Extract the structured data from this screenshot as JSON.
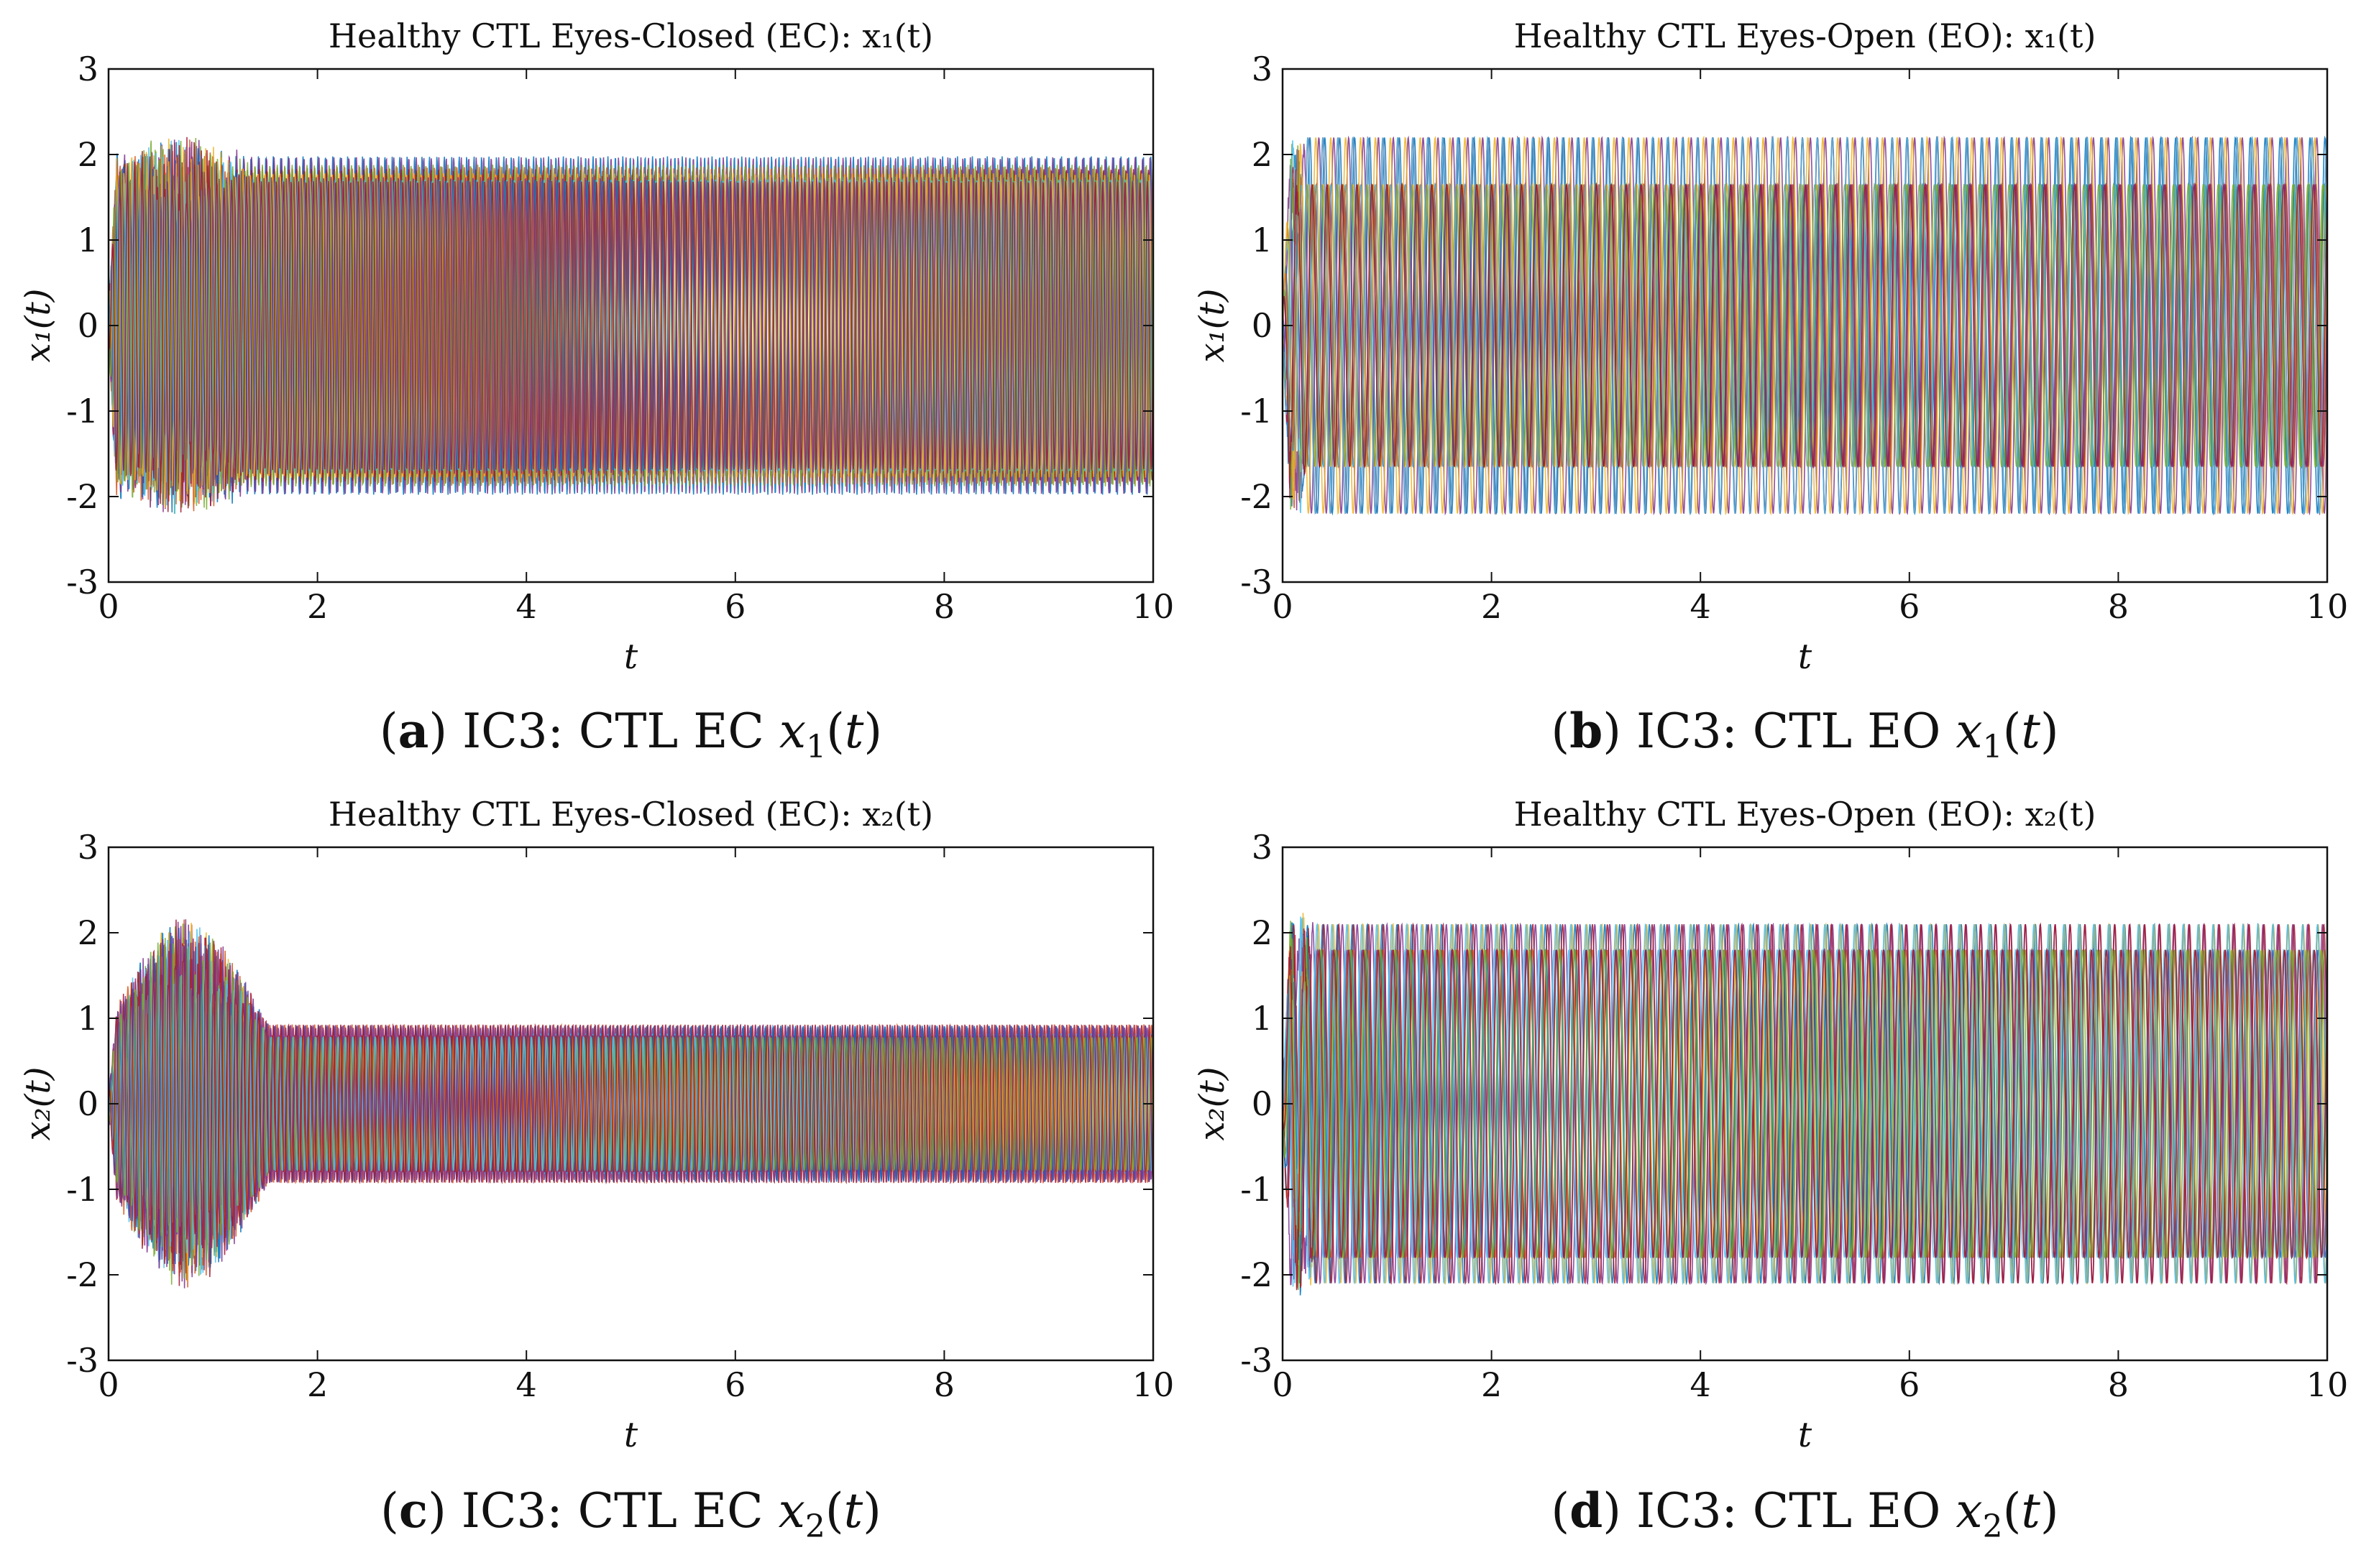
{
  "figure": {
    "captions": [
      {
        "letter": "a",
        "text": " IC3: CTL EC ",
        "var": "x",
        "sub": "1",
        "arg": "(t)",
        "close": ")"
      },
      {
        "letter": "b",
        "text": " IC3: CTL EO ",
        "var": "x",
        "sub": "1",
        "arg": "(t)",
        "close": ")"
      },
      {
        "letter": "c",
        "text": " IC3: CTL EC ",
        "var": "x",
        "sub": "2",
        "arg": "(t)",
        "close": ")"
      },
      {
        "letter": "d",
        "text": " IC3: CTL EO ",
        "var": "x",
        "sub": "2",
        "arg": "(t)",
        "close": ")"
      }
    ]
  },
  "colors": {
    "series": [
      "#0072BD",
      "#D95319",
      "#EDB120",
      "#7E2F8E",
      "#77AC30",
      "#4DBEEE",
      "#A2142F"
    ],
    "axis": "#111111"
  },
  "chart_data": [
    {
      "type": "line",
      "title": "Healthy CTL Eyes-Closed (EC): x₁(t)",
      "xlabel": "t",
      "ylabel": "x₁(t)",
      "xlim": [
        0,
        10
      ],
      "ylim": [
        -3,
        3
      ],
      "xticks": [
        "0",
        "2",
        "4",
        "6",
        "8",
        "10"
      ],
      "yticks": [
        "3",
        "2",
        "1",
        "0",
        "-1",
        "-2",
        "-3"
      ],
      "grid": false,
      "series_description": "many overlapping oscillating channels",
      "steady_amplitude": 2.0,
      "transient_peak": 2.3,
      "transient_end_t": 1.8,
      "frequency_hz": 14,
      "steady_offset": 0.0
    },
    {
      "type": "line",
      "title": "Healthy CTL Eyes-Open (EO): x₁(t)",
      "xlabel": "t",
      "ylabel": "x₁(t)",
      "xlim": [
        0,
        10
      ],
      "ylim": [
        -3,
        3
      ],
      "xticks": [
        "0",
        "2",
        "4",
        "6",
        "8",
        "10"
      ],
      "yticks": [
        "3",
        "2",
        "1",
        "0",
        "-1",
        "-2",
        "-3"
      ],
      "grid": false,
      "series_description": "many overlapping oscillating channels",
      "steady_amplitude": 2.2,
      "inner_amplitude": 1.65,
      "transient_peak": 2.25,
      "transient_end_t": 0.3,
      "frequency_hz": 7,
      "steady_offset": 0.0
    },
    {
      "type": "line",
      "title": "Healthy CTL Eyes-Closed (EC): x₂(t)",
      "xlabel": "t",
      "ylabel": "x₂(t)",
      "xlim": [
        0,
        10
      ],
      "ylim": [
        -3,
        3
      ],
      "xticks": [
        "0",
        "2",
        "4",
        "6",
        "8",
        "10"
      ],
      "yticks": [
        "3",
        "2",
        "1",
        "0",
        "-1",
        "-2",
        "-3"
      ],
      "grid": false,
      "series_description": "many overlapping oscillating channels",
      "steady_amplitude": 0.93,
      "transient_peak": 2.35,
      "transient_end_t": 2.0,
      "frequency_hz": 14,
      "steady_offset": 0.0
    },
    {
      "type": "line",
      "title": "Healthy CTL Eyes-Open (EO): x₂(t)",
      "xlabel": "t",
      "ylabel": "x₂(t)",
      "xlim": [
        0,
        10
      ],
      "ylim": [
        -3,
        3
      ],
      "xticks": [
        "0",
        "2",
        "4",
        "6",
        "8",
        "10"
      ],
      "yticks": [
        "3",
        "2",
        "1",
        "0",
        "-1",
        "-2",
        "-3"
      ],
      "grid": false,
      "series_description": "many overlapping oscillating channels",
      "steady_amplitude": 2.1,
      "inner_amplitude": 1.8,
      "transient_peak": 2.3,
      "transient_end_t": 0.4,
      "frequency_hz": 7,
      "steady_offset": 0.0
    }
  ]
}
